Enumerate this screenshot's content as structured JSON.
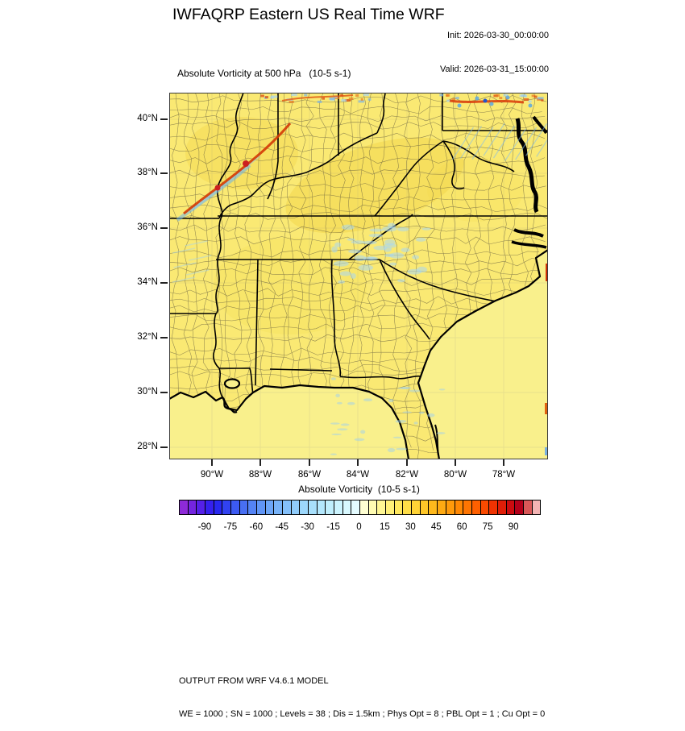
{
  "header": {
    "title": "IWFAQRP Eastern US Real Time WRF",
    "init": "Init: 2026-03-30_00:00:00",
    "valid": "Valid: 2026-03-31_15:00:00"
  },
  "plot": {
    "subtitle": "Absolute Vorticity at 500 hPa   (10-5 s-1)",
    "y_tick_labels": [
      "40°N",
      "38°N",
      "36°N",
      "34°N",
      "32°N",
      "30°N",
      "28°N"
    ],
    "x_tick_labels": [
      "90°W",
      "88°W",
      "86°W",
      "84°W",
      "82°W",
      "80°W",
      "78°W"
    ]
  },
  "map_colors": {
    "land": "#fae973",
    "ocean": "#f9f08c",
    "boundary": "#000000",
    "county_line": "#4a4436",
    "warm_tint": "#eec428",
    "cool_fleck": "#a9d7f1",
    "streak_red": "#d33a06",
    "streak_blue": "#6fb4e8"
  },
  "colorbar": {
    "label": "Absolute Vorticity  (10-5 s-1)",
    "tick_values": [
      -90,
      -75,
      -60,
      -45,
      -30,
      -15,
      0,
      15,
      30,
      45,
      60,
      75,
      90
    ],
    "value_range": [
      -105,
      105
    ],
    "segment_colors": [
      "#8e2ad8",
      "#7424e0",
      "#5520e8",
      "#3520ee",
      "#2828f0",
      "#3142f1",
      "#3c5af2",
      "#486ff3",
      "#5483f5",
      "#6095f6",
      "#6ca5f7",
      "#78b3f8",
      "#84c0fa",
      "#90ccfb",
      "#9cd7fb",
      "#a8e0fc",
      "#b4e8fd",
      "#c0effd",
      "#ccf4fe",
      "#d8f8fe",
      "#e4fbff",
      "#ffffd2",
      "#fffcb2",
      "#fff794",
      "#fff078",
      "#ffe85e",
      "#ffde48",
      "#ffd336",
      "#ffc728",
      "#ffb91c",
      "#ffaa12",
      "#ff9a0a",
      "#ff8804",
      "#ff7502",
      "#ff6000",
      "#fa4a00",
      "#ef3302",
      "#e01e08",
      "#cc0c10",
      "#b4001a",
      "#d95858",
      "#f3b4b4"
    ]
  },
  "footer": {
    "line1": "OUTPUT FROM WRF V4.6.1 MODEL",
    "line2": "WE = 1000 ; SN = 1000 ; Levels = 38 ; Dis = 1.5km ; Phys Opt = 8 ; PBL Opt = 1 ; Cu Opt = 0"
  }
}
